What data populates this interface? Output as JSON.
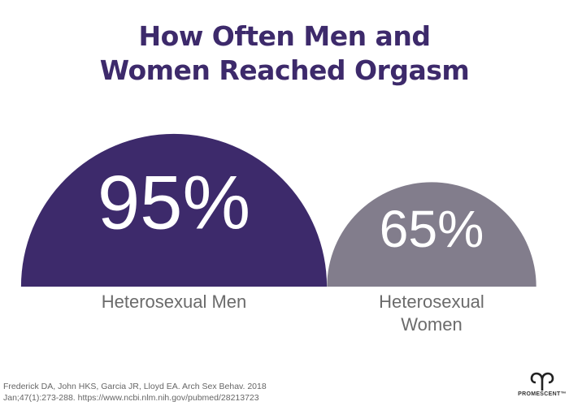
{
  "chart_data": {
    "type": "semicircle",
    "title": "How Often Men and Women Reached Orgasm",
    "categories": [
      "Heterosexual Men",
      "Heterosexual Women"
    ],
    "values": [
      95,
      65
    ],
    "value_labels": [
      "95%",
      "65%"
    ],
    "colors": [
      "#3d2a6b",
      "#827d8c"
    ],
    "source": "Frederick DA, John HKS, Garcia JR, Lloyd EA. Arch Sex Behav. 2018 Jan;47(1):273-288. https://www.ncbi.nlm.nih.gov/pubmed/28213723",
    "brand": "PROMESCENT™"
  }
}
